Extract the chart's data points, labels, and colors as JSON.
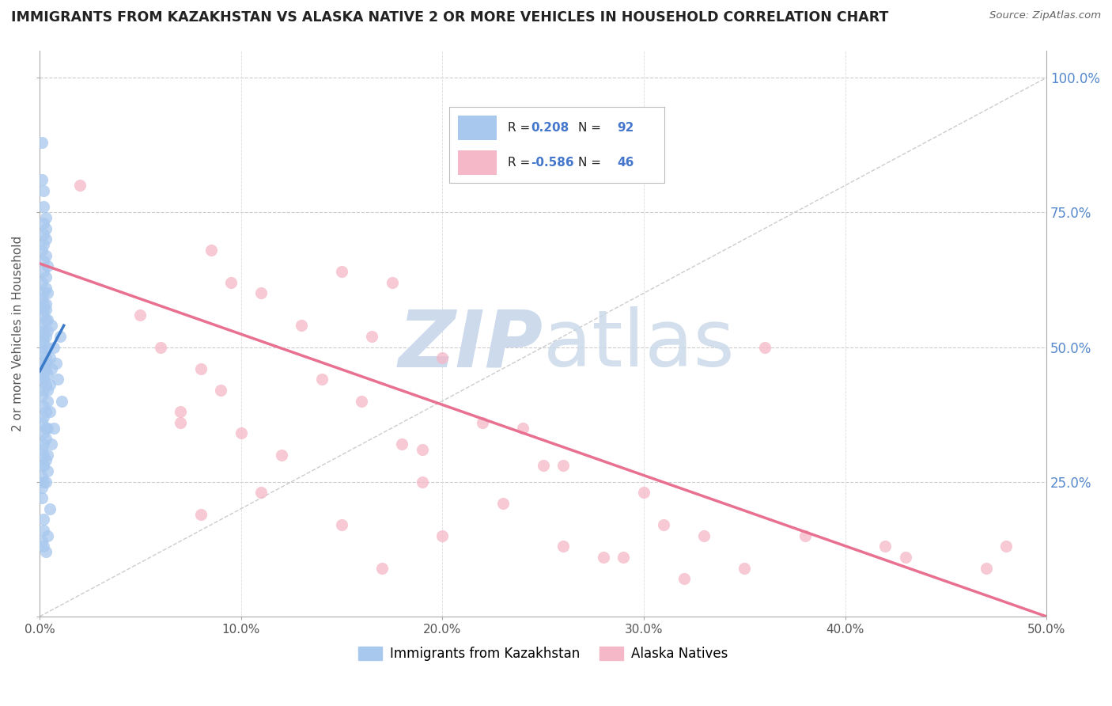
{
  "title": "IMMIGRANTS FROM KAZAKHSTAN VS ALASKA NATIVE 2 OR MORE VEHICLES IN HOUSEHOLD CORRELATION CHART",
  "source": "Source: ZipAtlas.com",
  "ylabel_label": "2 or more Vehicles in Household",
  "legend_label1": "Immigrants from Kazakhstan",
  "legend_label2": "Alaska Natives",
  "R1": 0.208,
  "N1": 92,
  "R2": -0.586,
  "N2": 46,
  "blue_color": "#a8c8ee",
  "pink_color": "#f5b8c8",
  "blue_line_color": "#3a7ac8",
  "pink_line_color": "#e87090",
  "blue_scatter": [
    [
      0.001,
      0.88
    ],
    [
      0.001,
      0.81
    ],
    [
      0.002,
      0.79
    ],
    [
      0.002,
      0.76
    ],
    [
      0.003,
      0.74
    ],
    [
      0.002,
      0.73
    ],
    [
      0.003,
      0.72
    ],
    [
      0.002,
      0.71
    ],
    [
      0.003,
      0.7
    ],
    [
      0.002,
      0.69
    ],
    [
      0.001,
      0.68
    ],
    [
      0.003,
      0.67
    ],
    [
      0.002,
      0.66
    ],
    [
      0.004,
      0.65
    ],
    [
      0.002,
      0.64
    ],
    [
      0.003,
      0.63
    ],
    [
      0.001,
      0.62
    ],
    [
      0.003,
      0.61
    ],
    [
      0.002,
      0.6
    ],
    [
      0.001,
      0.59
    ],
    [
      0.002,
      0.58
    ],
    [
      0.003,
      0.57
    ],
    [
      0.002,
      0.56
    ],
    [
      0.004,
      0.55
    ],
    [
      0.001,
      0.54
    ],
    [
      0.002,
      0.53
    ],
    [
      0.003,
      0.52
    ],
    [
      0.002,
      0.51
    ],
    [
      0.004,
      0.5
    ],
    [
      0.001,
      0.49
    ],
    [
      0.003,
      0.48
    ],
    [
      0.002,
      0.47
    ],
    [
      0.001,
      0.46
    ],
    [
      0.004,
      0.45
    ],
    [
      0.002,
      0.44
    ],
    [
      0.003,
      0.43
    ],
    [
      0.002,
      0.42
    ],
    [
      0.001,
      0.41
    ],
    [
      0.004,
      0.4
    ],
    [
      0.002,
      0.39
    ],
    [
      0.003,
      0.38
    ],
    [
      0.002,
      0.37
    ],
    [
      0.001,
      0.36
    ],
    [
      0.004,
      0.35
    ],
    [
      0.002,
      0.34
    ],
    [
      0.003,
      0.33
    ],
    [
      0.002,
      0.32
    ],
    [
      0.001,
      0.31
    ],
    [
      0.002,
      0.3
    ],
    [
      0.003,
      0.29
    ],
    [
      0.002,
      0.28
    ],
    [
      0.004,
      0.27
    ],
    [
      0.001,
      0.26
    ],
    [
      0.002,
      0.25
    ],
    [
      0.001,
      0.24
    ],
    [
      0.002,
      0.16
    ],
    [
      0.001,
      0.14
    ],
    [
      0.002,
      0.13
    ],
    [
      0.003,
      0.47
    ],
    [
      0.003,
      0.46
    ],
    [
      0.002,
      0.45
    ],
    [
      0.001,
      0.44
    ],
    [
      0.004,
      0.53
    ],
    [
      0.002,
      0.52
    ],
    [
      0.005,
      0.48
    ],
    [
      0.006,
      0.46
    ],
    [
      0.003,
      0.55
    ],
    [
      0.007,
      0.5
    ],
    [
      0.005,
      0.43
    ],
    [
      0.002,
      0.57
    ],
    [
      0.004,
      0.6
    ],
    [
      0.003,
      0.58
    ],
    [
      0.006,
      0.54
    ],
    [
      0.001,
      0.5
    ],
    [
      0.002,
      0.46
    ],
    [
      0.004,
      0.42
    ],
    [
      0.005,
      0.38
    ],
    [
      0.003,
      0.35
    ],
    [
      0.006,
      0.32
    ],
    [
      0.004,
      0.3
    ],
    [
      0.002,
      0.28
    ],
    [
      0.003,
      0.25
    ],
    [
      0.001,
      0.22
    ],
    [
      0.005,
      0.2
    ],
    [
      0.002,
      0.18
    ],
    [
      0.004,
      0.15
    ],
    [
      0.003,
      0.12
    ],
    [
      0.008,
      0.47
    ],
    [
      0.009,
      0.44
    ],
    [
      0.01,
      0.52
    ],
    [
      0.007,
      0.35
    ],
    [
      0.011,
      0.4
    ]
  ],
  "pink_scatter": [
    [
      0.02,
      0.8
    ],
    [
      0.085,
      0.68
    ],
    [
      0.15,
      0.64
    ],
    [
      0.095,
      0.62
    ],
    [
      0.11,
      0.6
    ],
    [
      0.175,
      0.62
    ],
    [
      0.05,
      0.56
    ],
    [
      0.13,
      0.54
    ],
    [
      0.165,
      0.52
    ],
    [
      0.06,
      0.5
    ],
    [
      0.2,
      0.48
    ],
    [
      0.08,
      0.46
    ],
    [
      0.14,
      0.44
    ],
    [
      0.09,
      0.42
    ],
    [
      0.16,
      0.4
    ],
    [
      0.07,
      0.38
    ],
    [
      0.22,
      0.36
    ],
    [
      0.1,
      0.34
    ],
    [
      0.18,
      0.32
    ],
    [
      0.12,
      0.3
    ],
    [
      0.25,
      0.28
    ],
    [
      0.07,
      0.36
    ],
    [
      0.19,
      0.25
    ],
    [
      0.11,
      0.23
    ],
    [
      0.23,
      0.21
    ],
    [
      0.08,
      0.19
    ],
    [
      0.15,
      0.17
    ],
    [
      0.2,
      0.15
    ],
    [
      0.26,
      0.13
    ],
    [
      0.29,
      0.11
    ],
    [
      0.17,
      0.09
    ],
    [
      0.32,
      0.07
    ],
    [
      0.38,
      0.15
    ],
    [
      0.42,
      0.13
    ],
    [
      0.36,
      0.5
    ],
    [
      0.48,
      0.13
    ],
    [
      0.43,
      0.11
    ],
    [
      0.35,
      0.09
    ],
    [
      0.47,
      0.09
    ],
    [
      0.3,
      0.23
    ],
    [
      0.24,
      0.35
    ],
    [
      0.19,
      0.31
    ],
    [
      0.26,
      0.28
    ],
    [
      0.31,
      0.17
    ],
    [
      0.33,
      0.15
    ],
    [
      0.28,
      0.11
    ]
  ],
  "blue_trend_x": [
    0.0,
    0.012
  ],
  "blue_trend_y": [
    0.455,
    0.54
  ],
  "pink_trend_x": [
    0.0,
    0.5
  ],
  "pink_trend_y": [
    0.655,
    0.0
  ],
  "ref_line_x": [
    0.0,
    0.5
  ],
  "ref_line_y": [
    0.0,
    1.0
  ],
  "xmin": 0.0,
  "xmax": 0.5,
  "ymin": 0.0,
  "ymax": 1.05,
  "yticks": [
    0.0,
    0.25,
    0.5,
    0.75,
    1.0
  ],
  "ytick_labels": [
    "",
    "25.0%",
    "50.0%",
    "75.0%",
    "100.0%"
  ],
  "xticks": [
    0.0,
    0.1,
    0.2,
    0.3,
    0.4,
    0.5
  ],
  "xtick_labels": [
    "0.0%",
    "10.0%",
    "20.0%",
    "30.0%",
    "40.0%",
    "50.0%"
  ],
  "figsize": [
    14.06,
    8.92
  ],
  "dpi": 100
}
